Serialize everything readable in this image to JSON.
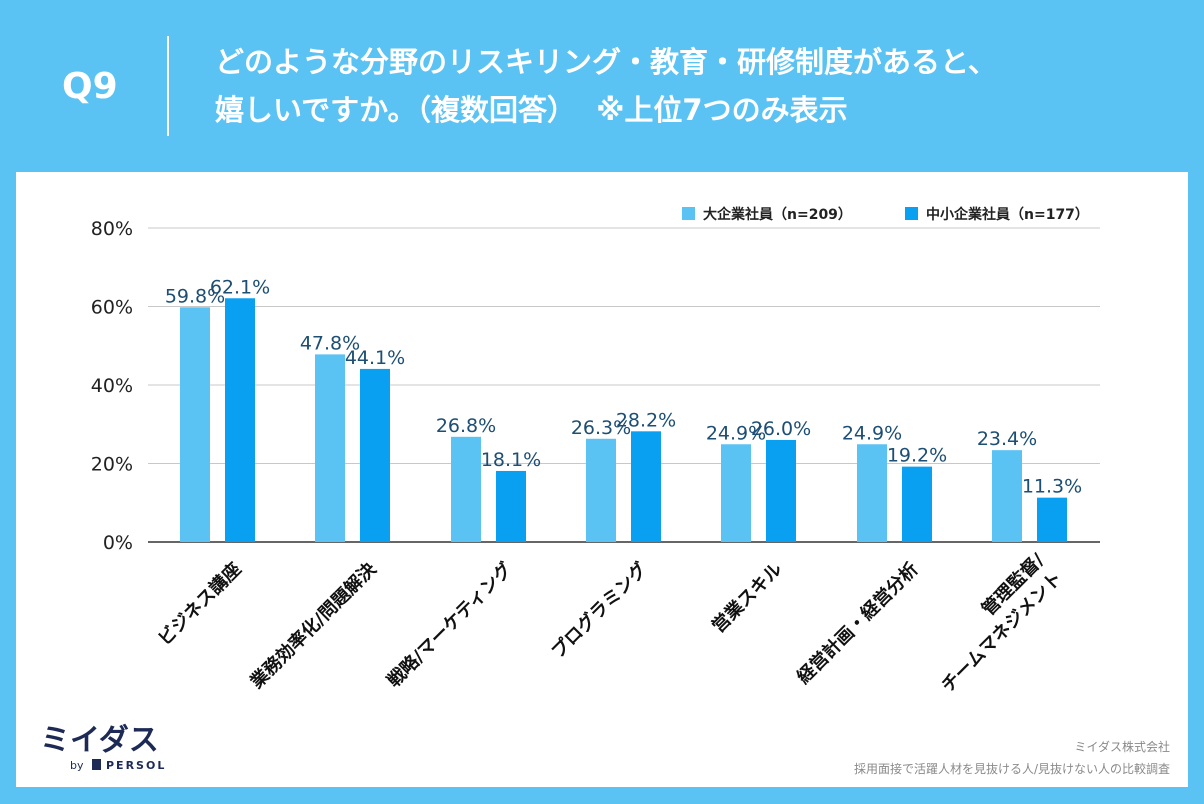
{
  "header": {
    "q_label": "Q9",
    "title_line1": "どのような分野のリスキリング・教育・研修制度があると、",
    "title_line2": "嬉しいですか。（複数回答）  ※上位7つのみ表示"
  },
  "chart_data": {
    "type": "bar",
    "categories": [
      "ビジネス講座",
      "業務効率化/問題解決",
      "戦略/マーケティング",
      "プログラミング",
      "営業スキル",
      "経営計画・経営分析",
      "管理監督/チームマネジメント"
    ],
    "category_lines": [
      [
        "ビジネス講座"
      ],
      [
        "業務効率化/問題解決"
      ],
      [
        "戦略/マーケティング"
      ],
      [
        "プログラミング"
      ],
      [
        "営業スキル"
      ],
      [
        "経営計画・経営分析"
      ],
      [
        "管理監督/",
        "チームマネジメント"
      ]
    ],
    "series": [
      {
        "name": "大企業社員（n=209）",
        "color": "#5bc2f4",
        "values": [
          59.8,
          47.8,
          26.8,
          26.3,
          24.9,
          24.9,
          23.4
        ]
      },
      {
        "name": "中小企業社員（n=177）",
        "color": "#0aa0f2",
        "values": [
          62.1,
          44.1,
          18.1,
          28.2,
          26.0,
          19.2,
          11.3
        ]
      }
    ],
    "ylim": [
      0,
      80
    ],
    "yticks": [
      0,
      20,
      40,
      60,
      80
    ],
    "ytick_suffix": "%",
    "value_suffix": "%",
    "grid": true,
    "legend": "top-right",
    "label_color": "#1d4e73"
  },
  "brand": {
    "logo_text": "ミイダス",
    "by_text": "by",
    "persol_text": "PERSOL"
  },
  "source": {
    "company": "ミイダス株式会社",
    "survey": "採用面接で活躍人材を見抜ける人/見抜けない人の比較調査"
  }
}
